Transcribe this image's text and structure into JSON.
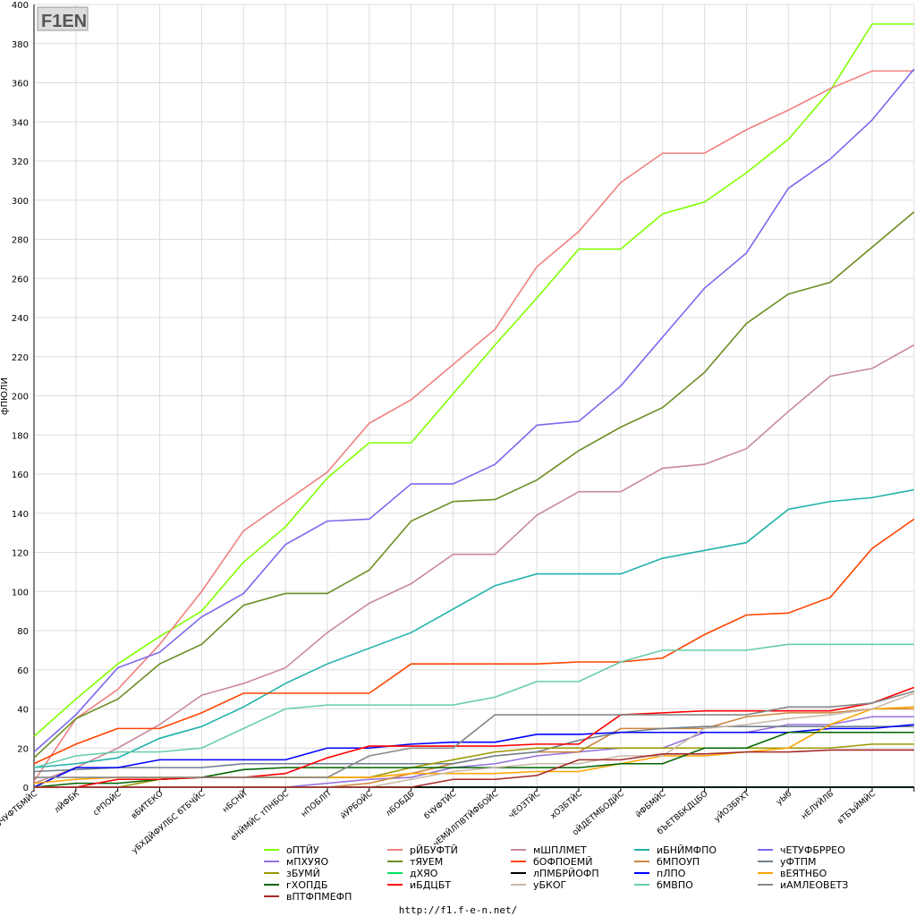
{
  "logo_text": "F1EN",
  "footer": "http://f1.f-e-n.net/",
  "chart_data": {
    "type": "line",
    "title": "",
    "xlabel": "",
    "ylabel": "фПЮЛЙ",
    "ylim": [
      0,
      400
    ],
    "yticks": [
      0,
      20,
      40,
      60,
      80,
      100,
      120,
      140,
      160,
      180,
      200,
      220,
      240,
      260,
      280,
      300,
      320,
      340,
      360,
      380,
      400
    ],
    "grid": true,
    "legend_placement": "bottom",
    "categories": [
      "бЧУФТБМЙС",
      "лЙФБК",
      "сРПОЙС",
      "вБИТЕКО",
      "уБХДЙФУЛБС бТБЧЙС",
      "нБСНЙ",
      "еНЙМЙС тПНБОС",
      "нПОБЛП",
      "йУРБОЙС",
      "лБОБДБ",
      "бЧУФТЙС",
      "чЕМЙЛПВТЙФБОЙС",
      "чЕОЗТЙС",
      "хОЗБТЙС",
      "оЙДЕТМБОДЙС",
      "йФБМЙС",
      "бЪЕТВБКДЦБО",
      "уЙОЗБРХТ",
      "уЫб",
      "нЕЛУЙЛБ",
      "вТБЪЙМЙС",
      ""
    ],
    "series": [
      {
        "name": "оПТЙУ",
        "color": "#80ff00",
        "values": [
          26,
          45,
          63,
          77,
          90,
          115,
          133,
          158,
          176,
          176,
          201,
          226,
          250,
          275,
          275,
          293,
          299,
          314,
          331,
          356,
          390,
          390
        ]
      },
      {
        "name": "рЙБУФТЙ",
        "color": "#f08080",
        "values": [
          3,
          35,
          50,
          73,
          100,
          131,
          146,
          161,
          186,
          198,
          216,
          234,
          266,
          284,
          309,
          324,
          324,
          336,
          346,
          357,
          366,
          366
        ]
      },
      {
        "name": "мШПЛМЕТ",
        "color": "#c98a98",
        "values": [
          2,
          10,
          20,
          32,
          47,
          53,
          61,
          79,
          94,
          104,
          119,
          119,
          139,
          151,
          151,
          163,
          165,
          173,
          192,
          210,
          214,
          226
        ]
      },
      {
        "name": "иБНЙМФПО",
        "color": "#20b2aa",
        "values": [
          10,
          12,
          15,
          25,
          31,
          41,
          53,
          63,
          71,
          79,
          91,
          103,
          109,
          109,
          109,
          117,
          121,
          125,
          142,
          146,
          148,
          152
        ]
      },
      {
        "name": "чЕТУФБРРЕО",
        "color": "#7b68ee",
        "values": [
          18,
          37,
          61,
          69,
          87,
          99,
          124,
          136,
          137,
          155,
          155,
          165,
          185,
          187,
          205,
          230,
          255,
          273,
          306,
          321,
          341,
          367
        ]
      },
      {
        "name": "мПХУЯО",
        "color": "#9370db",
        "values": [
          0,
          0,
          0,
          0,
          0,
          0,
          0,
          2,
          4,
          5,
          10,
          12,
          16,
          18,
          20,
          20,
          28,
          28,
          32,
          32,
          36,
          36
        ]
      },
      {
        "name": "тЯУЕМ",
        "color": "#6b8e23",
        "values": [
          15,
          35,
          45,
          63,
          73,
          93,
          99,
          99,
          111,
          136,
          146,
          147,
          157,
          172,
          184,
          194,
          212,
          237,
          252,
          258,
          276,
          294
        ]
      },
      {
        "name": "бОФПОЕМЙ",
        "color": "#ff4500",
        "values": [
          12,
          22,
          30,
          30,
          38,
          48,
          48,
          48,
          48,
          63,
          63,
          63,
          63,
          64,
          64,
          66,
          78,
          88,
          89,
          97,
          122,
          137
        ]
      },
      {
        "name": "бМПОУП",
        "color": "#cd853f",
        "values": [
          0,
          0,
          0,
          0,
          0,
          0,
          0,
          0,
          2,
          7,
          12,
          16,
          18,
          18,
          30,
          30,
          30,
          36,
          38,
          38,
          40,
          40
        ]
      },
      {
        "name": "уФТПМ",
        "color": "#708090",
        "values": [
          8,
          9,
          10,
          10,
          10,
          12,
          12,
          12,
          12,
          12,
          12,
          16,
          18,
          24,
          28,
          30,
          31,
          31,
          31,
          31,
          31,
          31
        ]
      },
      {
        "name": "зБУМЙ",
        "color": "#999900",
        "values": [
          0,
          0,
          0,
          4,
          5,
          5,
          5,
          5,
          5,
          10,
          14,
          18,
          20,
          20,
          20,
          20,
          20,
          20,
          20,
          20,
          22,
          22
        ]
      },
      {
        "name": "дХЯО",
        "color": "#00e060",
        "values": [
          0,
          0,
          0,
          0,
          0,
          0,
          0,
          0,
          0,
          0,
          0,
          0,
          0,
          0,
          0,
          0,
          0,
          0,
          0,
          0,
          0,
          0
        ]
      },
      {
        "name": "лПМБРЙОФП",
        "color": "#000000",
        "values": [
          0,
          0,
          0,
          0,
          0,
          0,
          0,
          0,
          0,
          0,
          0,
          0,
          0,
          0,
          0,
          0,
          0,
          0,
          0,
          0,
          0,
          0
        ]
      },
      {
        "name": "пЛПО",
        "color": "#0000ff",
        "values": [
          0,
          10,
          10,
          14,
          14,
          14,
          14,
          20,
          20,
          22,
          23,
          23,
          27,
          27,
          28,
          28,
          28,
          28,
          28,
          30,
          30,
          32
        ]
      },
      {
        "name": "вЕЯТНБО",
        "color": "#ffa500",
        "values": [
          2,
          4,
          5,
          5,
          5,
          5,
          5,
          5,
          5,
          7,
          7,
          7,
          8,
          8,
          12,
          16,
          16,
          18,
          20,
          32,
          40,
          41
        ]
      },
      {
        "name": "гХОПДБ",
        "color": "#006400",
        "values": [
          0,
          2,
          2,
          4,
          5,
          9,
          10,
          10,
          10,
          10,
          10,
          10,
          10,
          10,
          12,
          12,
          20,
          20,
          28,
          28,
          28,
          28
        ]
      },
      {
        "name": "иБДЦБТ",
        "color": "#ff0000",
        "values": [
          0,
          0,
          4,
          4,
          5,
          5,
          7,
          15,
          21,
          21,
          21,
          21,
          22,
          22,
          37,
          38,
          39,
          39,
          39,
          39,
          43,
          51
        ]
      },
      {
        "name": "уБКОГ",
        "color": "#c8b8a8",
        "values": [
          0,
          0,
          0,
          0,
          0,
          0,
          0,
          0,
          0,
          4,
          8,
          10,
          12,
          12,
          16,
          16,
          30,
          32,
          35,
          37,
          40,
          48
        ]
      },
      {
        "name": "бМВПО",
        "color": "#66cdaa",
        "values": [
          10,
          16,
          18,
          18,
          20,
          30,
          40,
          42,
          42,
          42,
          42,
          46,
          54,
          54,
          64,
          70,
          70,
          70,
          73,
          73,
          73,
          73
        ]
      },
      {
        "name": "иАМЛЕОВЕТЗ",
        "color": "#888888",
        "values": [
          5,
          5,
          5,
          5,
          5,
          5,
          5,
          5,
          16,
          20,
          20,
          37,
          37,
          37,
          37,
          37,
          37,
          37,
          41,
          41,
          43,
          49
        ]
      },
      {
        "name": "вПТФПМЕФП",
        "color": "#a52a2a",
        "values": [
          0,
          0,
          0,
          0,
          0,
          0,
          0,
          0,
          0,
          0,
          4,
          4,
          6,
          14,
          14,
          17,
          17,
          18,
          18,
          19,
          19,
          19
        ]
      }
    ]
  }
}
